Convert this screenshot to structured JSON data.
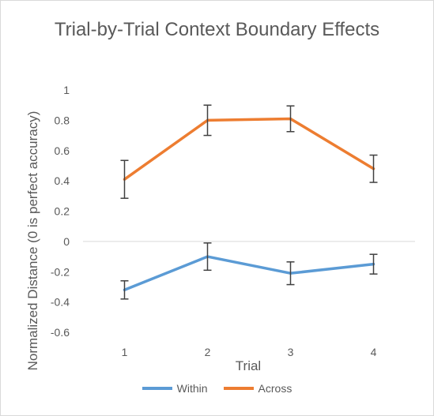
{
  "chart_data": {
    "type": "line",
    "title": "Trial-by-Trial Context Boundary Effects",
    "xlabel": "Trial",
    "ylabel": "Normalized Distance (0 is perfect accuracy)",
    "categories": [
      "1",
      "2",
      "3",
      "4"
    ],
    "ylim": [
      -0.6,
      1
    ],
    "yticks": [
      -0.6,
      -0.4,
      -0.2,
      0,
      0.2,
      0.4,
      0.6,
      0.8,
      1
    ],
    "ytick_labels": [
      "-0.6",
      "-0.4",
      "-0.2",
      "0",
      "0.2",
      "0.4",
      "0.6",
      "0.8",
      "1"
    ],
    "grid": false,
    "legend_position": "bottom",
    "series": [
      {
        "name": "Within",
        "color": "#5b9bd5",
        "values": [
          -0.32,
          -0.1,
          -0.21,
          -0.15
        ],
        "error": [
          0.06,
          0.09,
          0.075,
          0.065
        ]
      },
      {
        "name": "Across",
        "color": "#ed7d31",
        "values": [
          0.41,
          0.8,
          0.81,
          0.48
        ],
        "error": [
          0.125,
          0.1,
          0.085,
          0.09
        ]
      }
    ]
  }
}
